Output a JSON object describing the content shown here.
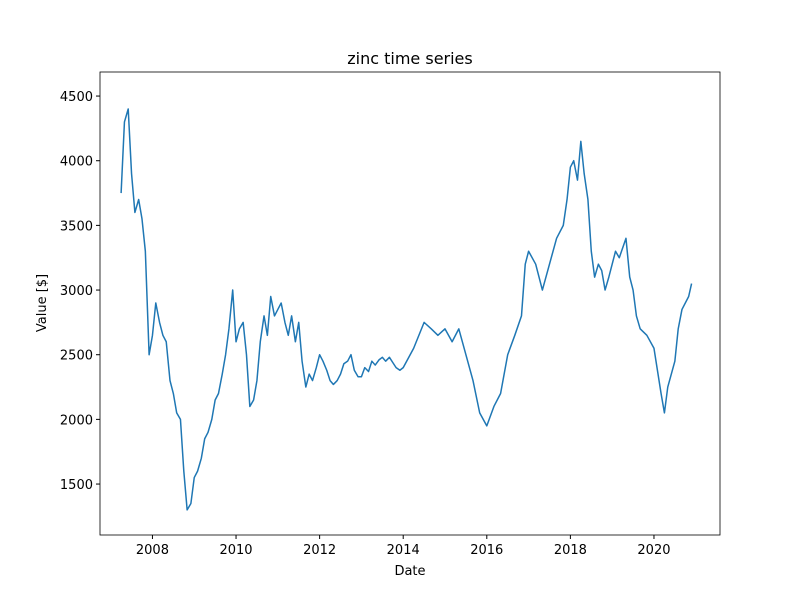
{
  "chart_data": {
    "type": "line",
    "title": "zinc time series",
    "x_label": "Date",
    "y_label": "Value [$]",
    "x": [
      2007.25,
      2007.33,
      2007.42,
      2007.5,
      2007.58,
      2007.67,
      2007.75,
      2007.83,
      2007.92,
      2008.0,
      2008.08,
      2008.17,
      2008.25,
      2008.33,
      2008.42,
      2008.5,
      2008.58,
      2008.67,
      2008.75,
      2008.83,
      2008.92,
      2009.0,
      2009.08,
      2009.17,
      2009.25,
      2009.33,
      2009.42,
      2009.5,
      2009.58,
      2009.67,
      2009.75,
      2009.83,
      2009.92,
      2010.0,
      2010.08,
      2010.17,
      2010.25,
      2010.33,
      2010.42,
      2010.5,
      2010.58,
      2010.67,
      2010.75,
      2010.83,
      2010.92,
      2011.0,
      2011.08,
      2011.17,
      2011.25,
      2011.33,
      2011.42,
      2011.5,
      2011.58,
      2011.67,
      2011.75,
      2011.83,
      2011.92,
      2012.0,
      2012.08,
      2012.17,
      2012.25,
      2012.33,
      2012.42,
      2012.5,
      2012.58,
      2012.67,
      2012.75,
      2012.83,
      2012.92,
      2013.0,
      2013.08,
      2013.17,
      2013.25,
      2013.33,
      2013.42,
      2013.5,
      2013.58,
      2013.67,
      2013.75,
      2013.83,
      2013.92,
      2014.0,
      2014.25,
      2014.5,
      2014.67,
      2014.83,
      2015.0,
      2015.17,
      2015.33,
      2015.5,
      2015.67,
      2015.83,
      2016.0,
      2016.17,
      2016.33,
      2016.5,
      2016.67,
      2016.83,
      2016.92,
      2017.0,
      2017.17,
      2017.33,
      2017.5,
      2017.67,
      2017.83,
      2017.92,
      2018.0,
      2018.08,
      2018.17,
      2018.25,
      2018.33,
      2018.42,
      2018.5,
      2018.58,
      2018.67,
      2018.75,
      2018.83,
      2018.92,
      2019.0,
      2019.08,
      2019.17,
      2019.33,
      2019.42,
      2019.5,
      2019.58,
      2019.67,
      2019.83,
      2020.0,
      2020.17,
      2020.25,
      2020.33,
      2020.5,
      2020.58,
      2020.67,
      2020.83,
      2020.9
    ],
    "series": [
      {
        "color": "#1f77b4",
        "values": [
          3750,
          4300,
          4400,
          3900,
          3600,
          3700,
          3550,
          3300,
          2500,
          2650,
          2900,
          2750,
          2650,
          2600,
          2300,
          2200,
          2050,
          2000,
          1600,
          1300,
          1350,
          1550,
          1600,
          1700,
          1850,
          1900,
          2000,
          2150,
          2200,
          2350,
          2500,
          2700,
          3000,
          2600,
          2700,
          2750,
          2500,
          2100,
          2150,
          2300,
          2600,
          2800,
          2650,
          2950,
          2800,
          2850,
          2900,
          2750,
          2650,
          2800,
          2600,
          2750,
          2450,
          2250,
          2350,
          2300,
          2400,
          2500,
          2450,
          2380,
          2300,
          2270,
          2300,
          2350,
          2430,
          2450,
          2500,
          2380,
          2330,
          2330,
          2400,
          2370,
          2450,
          2420,
          2460,
          2480,
          2450,
          2480,
          2440,
          2400,
          2380,
          2400,
          2550,
          2750,
          2700,
          2650,
          2700,
          2600,
          2700,
          2500,
          2300,
          2050,
          1950,
          2100,
          2200,
          2500,
          2650,
          2800,
          3200,
          3300,
          3200,
          3000,
          3200,
          3400,
          3500,
          3700,
          3950,
          4000,
          3850,
          4150,
          3900,
          3700,
          3300,
          3100,
          3200,
          3150,
          3000,
          3100,
          3200,
          3300,
          3250,
          3400,
          3100,
          3000,
          2800,
          2700,
          2650,
          2550,
          2200,
          2050,
          2250,
          2450,
          2700,
          2850,
          2950,
          3050
        ]
      }
    ],
    "xlim": [
      2006.745,
      2021.58
    ],
    "xticks": [
      2008,
      2010,
      2012,
      2014,
      2016,
      2018,
      2020
    ],
    "ylim": [
      1106,
      4686
    ],
    "yticks": [
      1500,
      2000,
      2500,
      3000,
      3500,
      4000,
      4500
    ]
  }
}
